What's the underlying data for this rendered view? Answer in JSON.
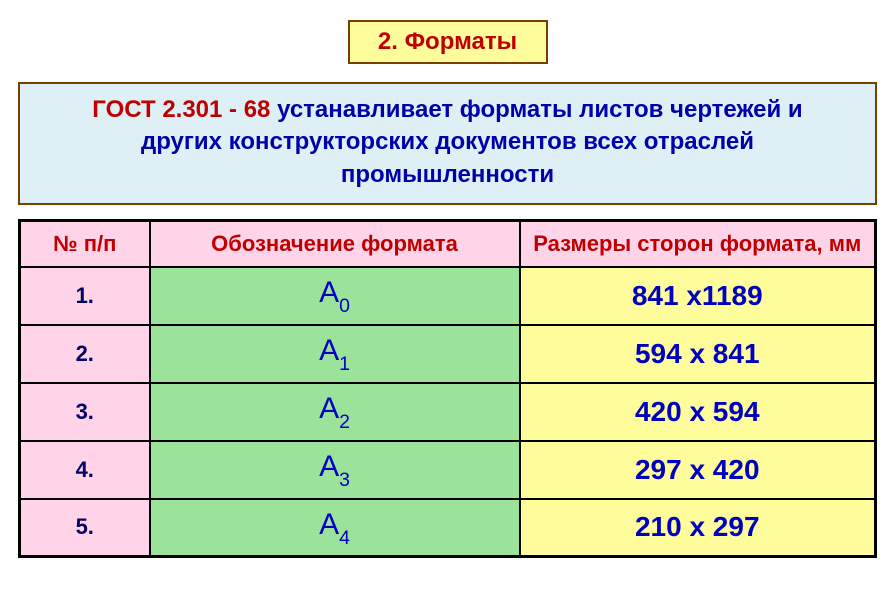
{
  "title": "2. Форматы",
  "description": {
    "gost": "ГОСТ 2.301 - 68",
    "rest": " устанавливает форматы листов чертежей и других конструкторских документов всех отраслей промышленности"
  },
  "table": {
    "headers": {
      "num": "№ п/п",
      "format": "Обозначение формата",
      "size": "Размеры сторон формата, мм"
    },
    "rows": [
      {
        "num": "1.",
        "fmt_main": "А",
        "fmt_sub": "0",
        "size": "841 х1189"
      },
      {
        "num": "2.",
        "fmt_main": "А",
        "fmt_sub": "1",
        "size": "594 х 841"
      },
      {
        "num": "3.",
        "fmt_main": "А",
        "fmt_sub": "2",
        "size": "420 х 594"
      },
      {
        "num": "4.",
        "fmt_main": "А",
        "fmt_sub": "3",
        "size": "297 х 420"
      },
      {
        "num": "5.",
        "fmt_main": "А",
        "fmt_sub": "4",
        "size": "210 х 297"
      }
    ]
  },
  "styling": {
    "title_bg": "#fffc9c",
    "title_border": "#7a3f00",
    "title_color": "#c00000",
    "desc_bg": "#def0f5",
    "header_bg": "#ffd4e8",
    "num_bg": "#ffd4e8",
    "fmt_bg": "#9be29b",
    "size_bg": "#fffc9c",
    "blue": "#0000c0",
    "red": "#c00000",
    "border": "#000000"
  }
}
